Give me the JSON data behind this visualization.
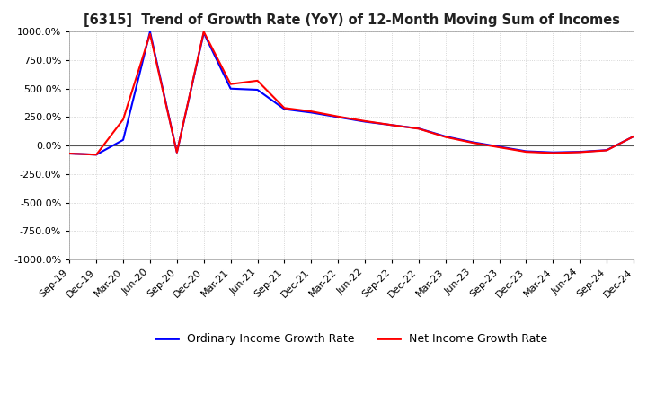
{
  "title": "[6315]  Trend of Growth Rate (YoY) of 12-Month Moving Sum of Incomes",
  "ylim": [
    -1000,
    1000
  ],
  "yticks": [
    1000,
    750,
    500,
    250,
    0,
    -250,
    -500,
    -750,
    -1000
  ],
  "background_color": "#ffffff",
  "grid_color": "#cccccc",
  "ordinary_color": "#0000ff",
  "net_color": "#ff0000",
  "legend_labels": [
    "Ordinary Income Growth Rate",
    "Net Income Growth Rate"
  ],
  "x_labels": [
    "Sep-19",
    "Dec-19",
    "Mar-20",
    "Jun-20",
    "Sep-20",
    "Dec-20",
    "Mar-21",
    "Jun-21",
    "Sep-21",
    "Dec-21",
    "Mar-22",
    "Jun-22",
    "Sep-22",
    "Dec-22",
    "Mar-23",
    "Jun-23",
    "Sep-23",
    "Dec-23",
    "Mar-24",
    "Jun-24",
    "Sep-24",
    "Dec-24"
  ],
  "ordinary_data": [
    -70,
    -80,
    50,
    1000,
    -60,
    990,
    500,
    490,
    320,
    290,
    250,
    210,
    180,
    150,
    80,
    30,
    -10,
    -50,
    -60,
    -55,
    -40,
    80
  ],
  "net_data": [
    -70,
    -80,
    230,
    980,
    -60,
    1000,
    540,
    570,
    330,
    300,
    255,
    215,
    180,
    148,
    75,
    25,
    -15,
    -55,
    -65,
    -58,
    -42,
    80
  ]
}
